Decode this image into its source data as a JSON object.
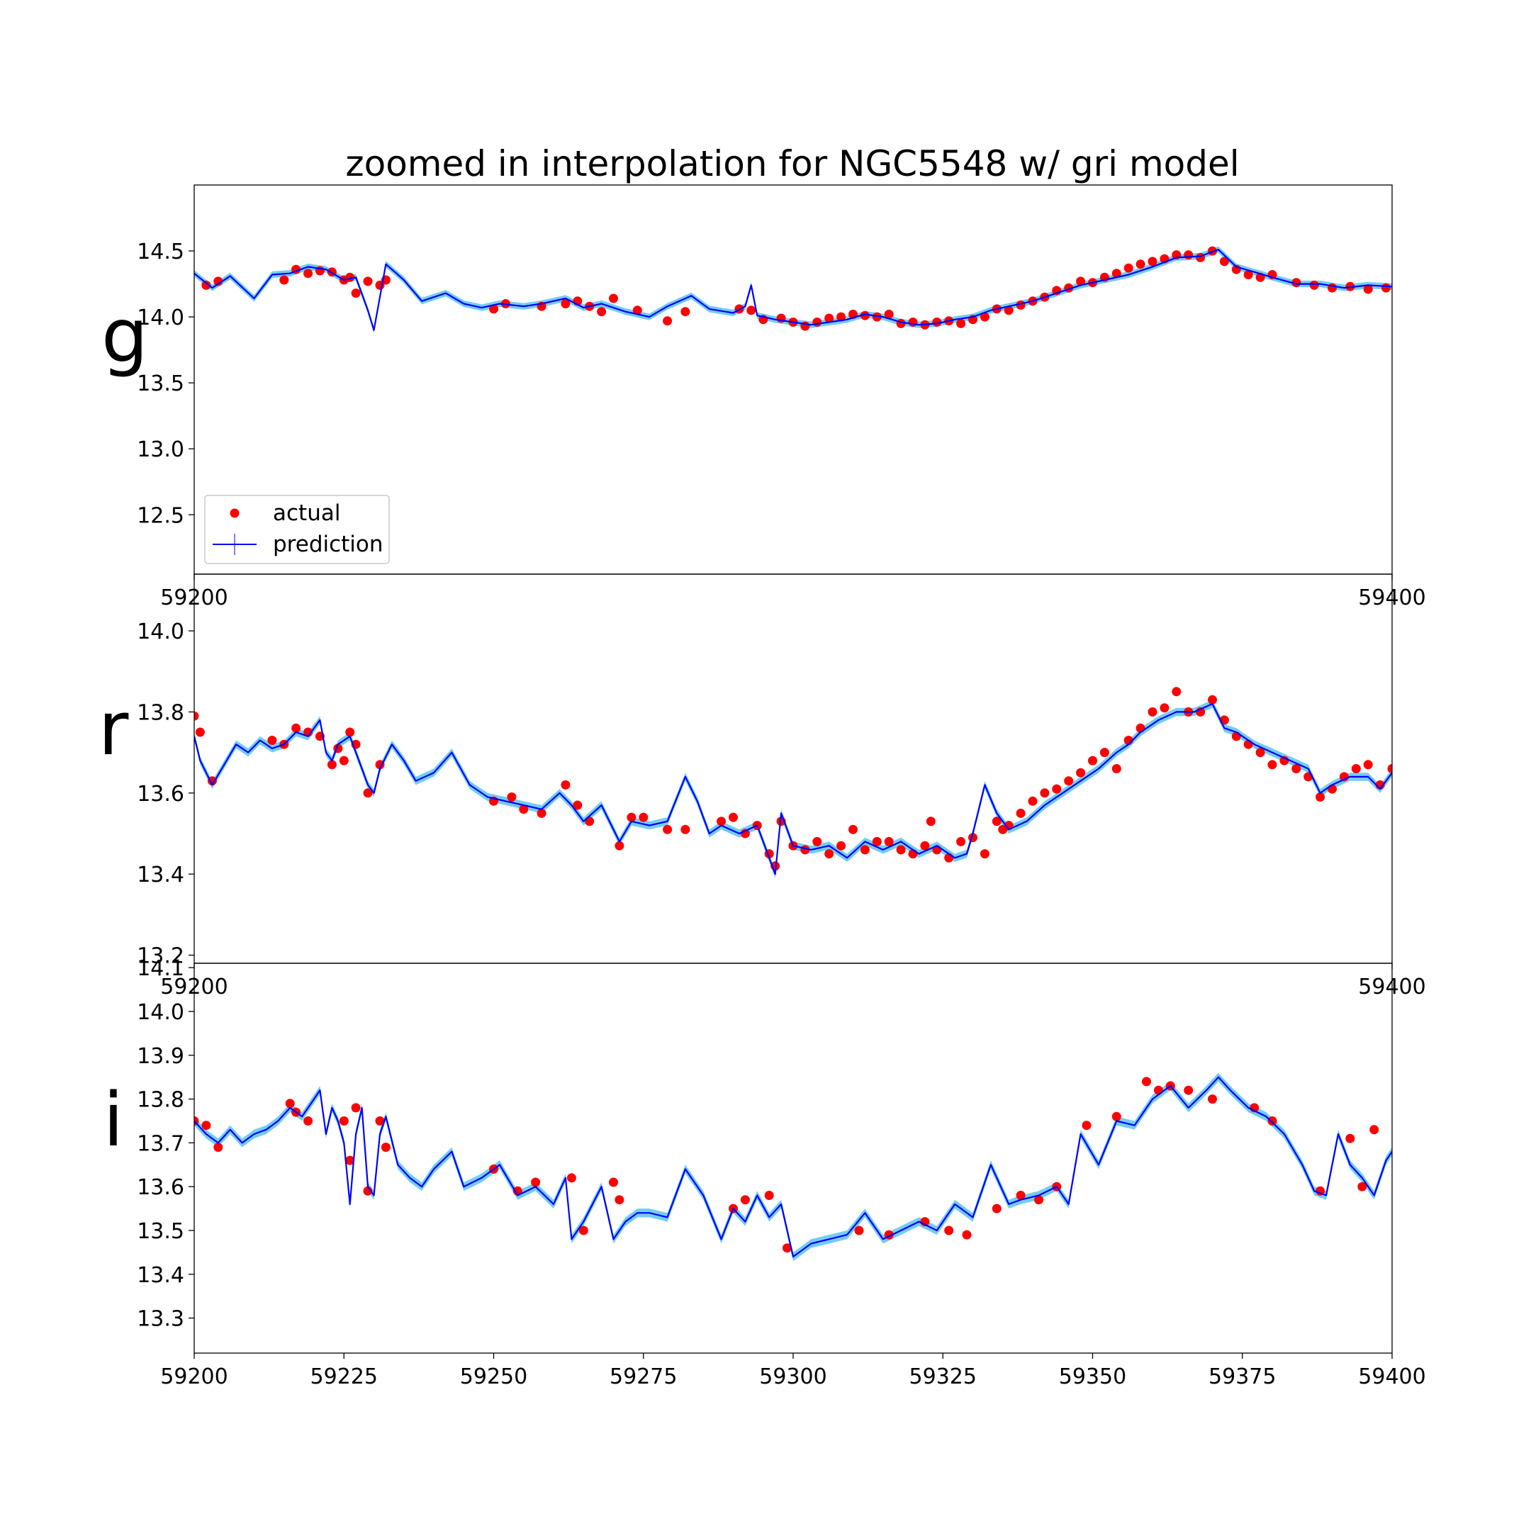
{
  "chart_data": {
    "type": "line",
    "title": "zoomed in interpolation for NGC5548 w/ gri model",
    "xlim": [
      59200,
      59400
    ],
    "x_ticks": [
      59200,
      59225,
      59250,
      59275,
      59300,
      59325,
      59350,
      59375,
      59400
    ],
    "legend": {
      "placement": "lower-left of top panel",
      "entries": [
        {
          "label": "actual",
          "marker": "red-dot",
          "color": "#ff0000"
        },
        {
          "label": "prediction",
          "marker": "blue-line",
          "color": "#0000ff"
        }
      ]
    },
    "colors": {
      "actual": "#ff0000",
      "prediction": "#0000ff",
      "uncertainty_band": "#5bc4f5",
      "axes": "#000000"
    },
    "panels": [
      {
        "band": "g",
        "ylim": [
          12.05,
          15.0
        ],
        "y_ticks": [
          "12.5",
          "13.0",
          "13.5",
          "14.0",
          "14.5"
        ],
        "x_tick_labels": [
          "59200",
          "59400"
        ],
        "show_legend": true,
        "prediction": {
          "x": [
            59200,
            59203,
            59206,
            59210,
            59213,
            59216,
            59219,
            59222,
            59225,
            59227,
            59229,
            59230,
            59232,
            59235,
            59238,
            59242,
            59245,
            59248,
            59251,
            59255,
            59258,
            59262,
            59265,
            59268,
            59272,
            59276,
            59279,
            59283,
            59286,
            59290,
            59292,
            59293,
            59294,
            59297,
            59300,
            59303,
            59306,
            59309,
            59312,
            59315,
            59318,
            59321,
            59324,
            59327,
            59330,
            59333,
            59336,
            59340,
            59344,
            59348,
            59352,
            59356,
            59360,
            59364,
            59368,
            59371,
            59374,
            59377,
            59380,
            59384,
            59388,
            59392,
            59396,
            59400
          ],
          "y": [
            14.33,
            14.22,
            14.31,
            14.14,
            14.32,
            14.33,
            14.38,
            14.36,
            14.28,
            14.3,
            14.05,
            13.9,
            14.4,
            14.28,
            14.12,
            14.18,
            14.1,
            14.07,
            14.1,
            14.08,
            14.1,
            14.14,
            14.07,
            14.1,
            14.04,
            14.0,
            14.08,
            14.16,
            14.06,
            14.03,
            14.08,
            14.24,
            14.01,
            13.98,
            13.96,
            13.94,
            13.96,
            13.98,
            14.02,
            14.0,
            13.96,
            13.94,
            13.95,
            13.98,
            14.0,
            14.05,
            14.08,
            14.12,
            14.18,
            14.24,
            14.28,
            14.32,
            14.38,
            14.45,
            14.46,
            14.51,
            14.38,
            14.34,
            14.3,
            14.25,
            14.25,
            14.22,
            14.24,
            14.23
          ],
          "band_width": 0.025
        },
        "actual": {
          "x": [
            59202,
            59204,
            59215,
            59217,
            59219,
            59221,
            59223,
            59225,
            59226,
            59227,
            59229,
            59231,
            59232,
            59250,
            59252,
            59258,
            59262,
            59264,
            59266,
            59268,
            59270,
            59274,
            59279,
            59282,
            59291,
            59293,
            59295,
            59298,
            59300,
            59302,
            59304,
            59306,
            59308,
            59310,
            59312,
            59314,
            59316,
            59318,
            59320,
            59322,
            59324,
            59326,
            59328,
            59330,
            59332,
            59334,
            59336,
            59338,
            59340,
            59342,
            59344,
            59346,
            59348,
            59350,
            59352,
            59354,
            59356,
            59358,
            59360,
            59362,
            59364,
            59366,
            59368,
            59370,
            59372,
            59374,
            59376,
            59378,
            59380,
            59384,
            59387,
            59390,
            59393,
            59396,
            59399
          ],
          "y": [
            14.24,
            14.27,
            14.28,
            14.36,
            14.33,
            14.35,
            14.34,
            14.28,
            14.3,
            14.18,
            14.27,
            14.24,
            14.28,
            14.06,
            14.1,
            14.08,
            14.1,
            14.12,
            14.08,
            14.04,
            14.14,
            14.05,
            13.97,
            14.04,
            14.06,
            14.05,
            13.98,
            13.99,
            13.96,
            13.93,
            13.96,
            13.99,
            14.0,
            14.02,
            14.01,
            14.0,
            14.02,
            13.95,
            13.96,
            13.94,
            13.96,
            13.97,
            13.95,
            13.98,
            14.0,
            14.06,
            14.05,
            14.09,
            14.12,
            14.15,
            14.2,
            14.22,
            14.27,
            14.26,
            14.3,
            14.33,
            14.37,
            14.4,
            14.42,
            14.44,
            14.47,
            14.47,
            14.45,
            14.5,
            14.42,
            14.36,
            14.32,
            14.3,
            14.32,
            14.26,
            14.24,
            14.22,
            14.23,
            14.21,
            14.22
          ]
        }
      },
      {
        "band": "r",
        "ylim": [
          13.18,
          14.14
        ],
        "y_ticks": [
          "13.2",
          "13.4",
          "13.6",
          "13.8",
          "14.0"
        ],
        "x_tick_labels": [
          "59200",
          "59400"
        ],
        "show_legend": false,
        "prediction": {
          "x": [
            59200,
            59201,
            59203,
            59205,
            59207,
            59209,
            59211,
            59213,
            59215,
            59217,
            59219,
            59221,
            59222,
            59223,
            59224,
            59226,
            59227,
            59228,
            59229,
            59230,
            59231,
            59233,
            59235,
            59237,
            59240,
            59243,
            59246,
            59249,
            59252,
            59255,
            59258,
            59261,
            59263,
            59265,
            59268,
            59271,
            59273,
            59276,
            59279,
            59282,
            59284,
            59286,
            59288,
            59291,
            59294,
            59296,
            59297,
            59298,
            59300,
            59303,
            59306,
            59309,
            59312,
            59315,
            59318,
            59321,
            59324,
            59327,
            59329,
            59330,
            59332,
            59334,
            59336,
            59339,
            59342,
            59345,
            59348,
            59351,
            59354,
            59356,
            59358,
            59361,
            59364,
            59367,
            59370,
            59372,
            59374,
            59377,
            59380,
            59383,
            59386,
            59388,
            59390,
            59393,
            59396,
            59398,
            59400
          ],
          "y": [
            13.74,
            13.68,
            13.62,
            13.67,
            13.72,
            13.7,
            13.73,
            13.71,
            13.72,
            13.75,
            13.74,
            13.78,
            13.7,
            13.68,
            13.72,
            13.74,
            13.7,
            13.66,
            13.62,
            13.6,
            13.66,
            13.72,
            13.68,
            13.63,
            13.65,
            13.7,
            13.62,
            13.59,
            13.58,
            13.57,
            13.56,
            13.6,
            13.57,
            13.53,
            13.57,
            13.48,
            13.53,
            13.52,
            13.53,
            13.64,
            13.58,
            13.5,
            13.52,
            13.5,
            13.52,
            13.44,
            13.4,
            13.55,
            13.47,
            13.46,
            13.47,
            13.44,
            13.48,
            13.46,
            13.48,
            13.45,
            13.47,
            13.44,
            13.45,
            13.5,
            13.62,
            13.55,
            13.51,
            13.53,
            13.57,
            13.6,
            13.63,
            13.66,
            13.7,
            13.72,
            13.75,
            13.78,
            13.8,
            13.8,
            13.82,
            13.76,
            13.75,
            13.72,
            13.7,
            13.68,
            13.66,
            13.6,
            13.62,
            13.64,
            13.64,
            13.61,
            13.65
          ],
          "band_width": 0.01
        },
        "actual": {
          "x": [
            59200,
            59201,
            59203,
            59213,
            59215,
            59217,
            59219,
            59221,
            59223,
            59224,
            59225,
            59226,
            59227,
            59229,
            59231,
            59250,
            59253,
            59255,
            59258,
            59262,
            59264,
            59266,
            59271,
            59273,
            59275,
            59279,
            59282,
            59288,
            59290,
            59292,
            59294,
            59296,
            59297,
            59298,
            59300,
            59302,
            59304,
            59306,
            59308,
            59310,
            59312,
            59314,
            59316,
            59318,
            59320,
            59322,
            59323,
            59324,
            59326,
            59328,
            59330,
            59332,
            59334,
            59335,
            59336,
            59338,
            59340,
            59342,
            59344,
            59346,
            59348,
            59350,
            59352,
            59354,
            59356,
            59358,
            59360,
            59362,
            59364,
            59366,
            59368,
            59370,
            59372,
            59374,
            59376,
            59378,
            59380,
            59382,
            59384,
            59386,
            59388,
            59390,
            59392,
            59394,
            59396,
            59398,
            59400
          ],
          "y": [
            13.79,
            13.75,
            13.63,
            13.73,
            13.72,
            13.76,
            13.75,
            13.74,
            13.67,
            13.71,
            13.68,
            13.75,
            13.72,
            13.6,
            13.67,
            13.58,
            13.59,
            13.56,
            13.55,
            13.62,
            13.57,
            13.53,
            13.47,
            13.54,
            13.54,
            13.51,
            13.51,
            13.53,
            13.54,
            13.5,
            13.52,
            13.45,
            13.42,
            13.53,
            13.47,
            13.46,
            13.48,
            13.45,
            13.47,
            13.51,
            13.46,
            13.48,
            13.48,
            13.46,
            13.45,
            13.47,
            13.53,
            13.46,
            13.44,
            13.48,
            13.49,
            13.45,
            13.53,
            13.51,
            13.52,
            13.55,
            13.58,
            13.6,
            13.61,
            13.63,
            13.65,
            13.68,
            13.7,
            13.66,
            13.73,
            13.76,
            13.8,
            13.81,
            13.85,
            13.8,
            13.8,
            13.83,
            13.78,
            13.74,
            13.72,
            13.7,
            13.67,
            13.68,
            13.66,
            13.64,
            13.59,
            13.61,
            13.64,
            13.66,
            13.67,
            13.62,
            13.66
          ]
        }
      },
      {
        "band": "i",
        "ylim": [
          13.22,
          14.11
        ],
        "y_ticks": [
          "13.3",
          "13.4",
          "13.5",
          "13.6",
          "13.7",
          "13.8",
          "13.9",
          "14.0",
          "14.1"
        ],
        "x_tick_labels": [
          "59200",
          "59225",
          "59250",
          "59275",
          "59300",
          "59325",
          "59350",
          "59375",
          "59400"
        ],
        "show_legend": false,
        "prediction": {
          "x": [
            59200,
            59202,
            59204,
            59206,
            59208,
            59210,
            59212,
            59214,
            59216,
            59218,
            59220,
            59221,
            59222,
            59223,
            59224,
            59225,
            59226,
            59227,
            59228,
            59229,
            59230,
            59231,
            59232,
            59234,
            59236,
            59238,
            59240,
            59243,
            59245,
            59248,
            59251,
            59254,
            59257,
            59260,
            59262,
            59263,
            59265,
            59268,
            59270,
            59272,
            59274,
            59276,
            59279,
            59282,
            59285,
            59288,
            59290,
            59292,
            59294,
            59296,
            59298,
            59300,
            59303,
            59306,
            59309,
            59312,
            59315,
            59318,
            59321,
            59324,
            59327,
            59330,
            59333,
            59336,
            59338,
            59341,
            59344,
            59346,
            59348,
            59351,
            59354,
            59357,
            59360,
            59363,
            59366,
            59369,
            59371,
            59373,
            59376,
            59379,
            59382,
            59385,
            59387,
            59389,
            59391,
            59393,
            59395,
            59397,
            59399,
            59400
          ],
          "y": [
            13.75,
            13.72,
            13.7,
            13.73,
            13.7,
            13.72,
            13.73,
            13.75,
            13.78,
            13.76,
            13.8,
            13.82,
            13.72,
            13.78,
            13.75,
            13.7,
            13.56,
            13.72,
            13.78,
            13.6,
            13.58,
            13.72,
            13.76,
            13.65,
            13.62,
            13.6,
            13.64,
            13.68,
            13.6,
            13.62,
            13.65,
            13.58,
            13.6,
            13.56,
            13.62,
            13.48,
            13.52,
            13.6,
            13.48,
            13.52,
            13.54,
            13.54,
            13.53,
            13.64,
            13.58,
            13.48,
            13.55,
            13.52,
            13.58,
            13.53,
            13.56,
            13.44,
            13.47,
            13.48,
            13.49,
            13.54,
            13.48,
            13.5,
            13.52,
            13.5,
            13.56,
            13.53,
            13.65,
            13.56,
            13.57,
            13.58,
            13.6,
            13.56,
            13.72,
            13.65,
            13.75,
            13.74,
            13.8,
            13.83,
            13.78,
            13.82,
            13.85,
            13.82,
            13.78,
            13.76,
            13.72,
            13.65,
            13.59,
            13.58,
            13.72,
            13.65,
            13.62,
            13.58,
            13.66,
            13.68
          ],
          "band_width": 0.01
        },
        "actual": {
          "x": [
            59200,
            59202,
            59204,
            59216,
            59217,
            59219,
            59225,
            59226,
            59227,
            59229,
            59231,
            59232,
            59250,
            59254,
            59257,
            59263,
            59265,
            59270,
            59271,
            59290,
            59292,
            59296,
            59299,
            59311,
            59316,
            59322,
            59326,
            59329,
            59334,
            59338,
            59341,
            59344,
            59349,
            59354,
            59359,
            59361,
            59363,
            59366,
            59370,
            59377,
            59380,
            59388,
            59393,
            59395,
            59397
          ],
          "y": [
            13.75,
            13.74,
            13.69,
            13.79,
            13.77,
            13.75,
            13.75,
            13.66,
            13.78,
            13.59,
            13.75,
            13.69,
            13.64,
            13.59,
            13.61,
            13.62,
            13.5,
            13.61,
            13.57,
            13.55,
            13.57,
            13.58,
            13.46,
            13.5,
            13.49,
            13.52,
            13.5,
            13.49,
            13.55,
            13.58,
            13.57,
            13.6,
            13.74,
            13.76,
            13.84,
            13.82,
            13.83,
            13.82,
            13.8,
            13.78,
            13.75,
            13.59,
            13.71,
            13.6,
            13.73
          ]
        }
      }
    ]
  }
}
